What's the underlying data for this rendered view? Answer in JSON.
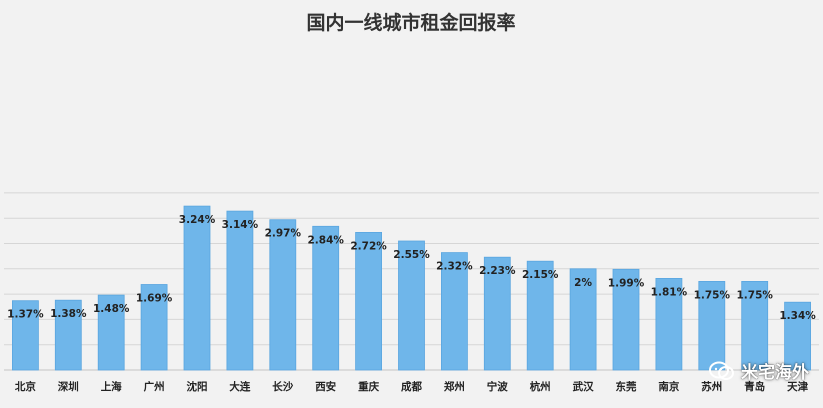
{
  "chart_data": {
    "type": "bar",
    "title": "国内一线城市租金回报率",
    "categories": [
      "北京",
      "深圳",
      "上海",
      "广州",
      "沈阳",
      "大连",
      "长沙",
      "西安",
      "重庆",
      "成都",
      "郑州",
      "宁波",
      "杭州",
      "武汉",
      "东莞",
      "南京",
      "苏州",
      "青岛",
      "天津"
    ],
    "values": [
      1.37,
      1.38,
      1.48,
      1.69,
      3.24,
      3.14,
      2.97,
      2.84,
      2.72,
      2.55,
      2.32,
      2.23,
      2.15,
      2.0,
      1.99,
      1.81,
      1.75,
      1.75,
      1.34
    ],
    "value_labels": [
      "1.37%",
      "1.38%",
      "1.48%",
      "1.69%",
      "3.24%",
      "3.14%",
      "2.97%",
      "2.84%",
      "2.72%",
      "2.55%",
      "2.32%",
      "2.23%",
      "2.15%",
      "2%",
      "1.99%",
      "1.81%",
      "1.75%",
      "1.75%",
      "1.34%"
    ],
    "ylim": [
      0,
      3.5
    ],
    "grid": true,
    "colors": {
      "bar": "#6fb6ea",
      "bar_edge": "#5aa6df",
      "grid": "#d6d6d6",
      "background": "#f2f2f2",
      "text": "#222222"
    }
  },
  "watermark": {
    "text": "米宅海外",
    "icon": "wechat-bubble-icon"
  }
}
